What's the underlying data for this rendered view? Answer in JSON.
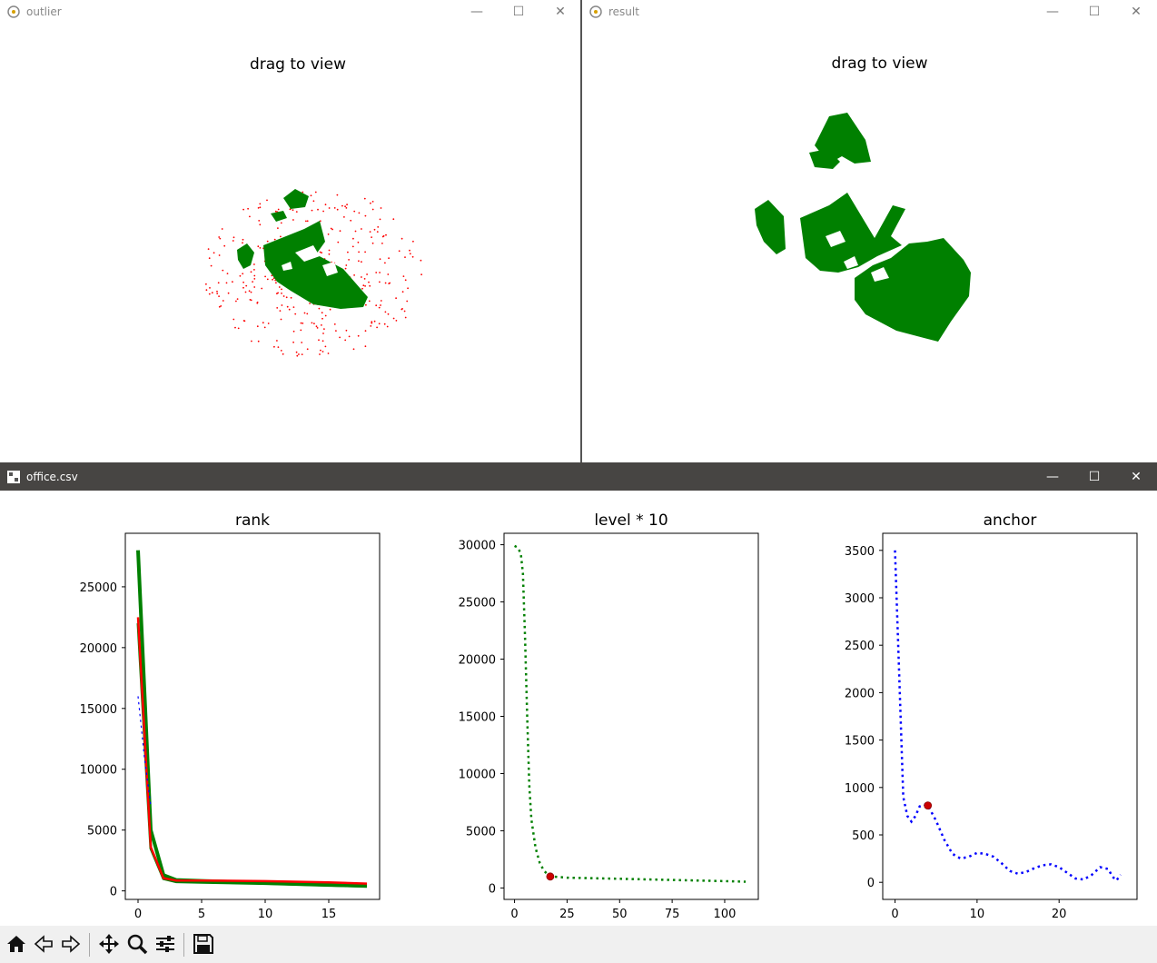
{
  "windows": {
    "outlier": {
      "title": "outlier",
      "heading": "drag to view"
    },
    "result": {
      "title": "result",
      "heading": "drag to view"
    },
    "main": {
      "title": "office.csv"
    }
  },
  "controls": {
    "minimize": "—",
    "maximize": "☐",
    "close": "✕"
  },
  "toolbar": {
    "buttons": [
      "home-icon",
      "back-icon",
      "forward-icon",
      "pan-icon",
      "zoom-icon",
      "configure-icon",
      "save-icon"
    ]
  },
  "colors": {
    "green": "#008000",
    "red": "#ff0000",
    "blue": "#0000ff",
    "darkred": "#cc0000"
  },
  "chart_data": [
    {
      "type": "line",
      "title": "rank",
      "xlim": [
        -1,
        19
      ],
      "ylim": [
        -700,
        29400
      ],
      "xticks": [
        0,
        5,
        10,
        15
      ],
      "yticks": [
        0,
        5000,
        10000,
        15000,
        20000,
        25000
      ],
      "series": [
        {
          "name": "green-band",
          "color": "#008000",
          "x": [
            0,
            1,
            2,
            3,
            5,
            10,
            15,
            18
          ],
          "values": [
            28000,
            5000,
            1300,
            900,
            820,
            650,
            500,
            400
          ]
        },
        {
          "name": "green-lower",
          "color": "#008000",
          "x": [
            0,
            1,
            2,
            3,
            5,
            10,
            15,
            18
          ],
          "values": [
            22000,
            3500,
            1000,
            750,
            700,
            600,
            450,
            380
          ]
        },
        {
          "name": "red",
          "color": "#ff0000",
          "x": [
            0,
            1,
            2,
            3,
            5,
            10,
            15,
            18
          ],
          "values": [
            22500,
            3600,
            1050,
            850,
            850,
            800,
            700,
            600
          ]
        },
        {
          "name": "blue-dotted",
          "color": "#0000ff",
          "x": [
            0,
            0.5,
            1
          ],
          "values": [
            16000,
            11000,
            7000
          ]
        }
      ]
    },
    {
      "type": "line",
      "title": "level * 10",
      "xlim": [
        -5,
        116
      ],
      "ylim": [
        -1000,
        31000
      ],
      "xticks": [
        0,
        25,
        50,
        75,
        100
      ],
      "yticks": [
        0,
        5000,
        10000,
        15000,
        20000,
        25000,
        30000
      ],
      "series": [
        {
          "name": "green-dotted",
          "color": "#008000",
          "x": [
            0,
            1,
            2,
            3,
            4,
            5,
            6,
            7,
            8,
            10,
            12,
            14,
            16,
            18,
            25,
            50,
            75,
            100,
            110
          ],
          "values": [
            29900,
            29800,
            29600,
            29200,
            27500,
            22000,
            15000,
            9000,
            6000,
            3500,
            2200,
            1500,
            1150,
            1000,
            900,
            800,
            700,
            600,
            550
          ]
        }
      ],
      "marker": {
        "x": 17,
        "y": 1000
      }
    },
    {
      "type": "line",
      "title": "anchor",
      "xlim": [
        -1.5,
        29.5
      ],
      "ylim": [
        -180,
        3680
      ],
      "xticks": [
        0,
        10,
        20
      ],
      "yticks": [
        0,
        500,
        1000,
        1500,
        2000,
        2500,
        3000,
        3500
      ],
      "series": [
        {
          "name": "blue-dotted",
          "color": "#0000ff",
          "x": [
            0,
            0.5,
            1,
            1.5,
            2,
            2.5,
            3,
            3.5,
            4,
            5,
            6,
            7,
            8,
            9,
            10,
            11,
            12,
            13,
            14,
            15,
            16,
            17,
            18,
            19,
            20,
            21,
            22,
            23,
            24,
            25,
            26,
            26.5,
            27,
            27.5
          ],
          "values": [
            3500,
            2200,
            900,
            700,
            640,
            700,
            800,
            820,
            810,
            650,
            450,
            300,
            250,
            270,
            310,
            300,
            270,
            200,
            120,
            90,
            110,
            150,
            180,
            190,
            160,
            100,
            40,
            30,
            80,
            160,
            140,
            60,
            20,
            80
          ]
        }
      ],
      "marker": {
        "x": 4,
        "y": 810
      }
    }
  ]
}
